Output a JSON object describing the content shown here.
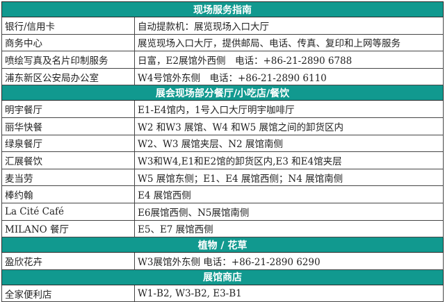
{
  "accent_color": "#11998f",
  "sections": [
    {
      "title": "现场服务指南",
      "rows": [
        [
          "银行/信用卡",
          "自动提款机：展览现场入口大厅"
        ],
        [
          "商务中心",
          "展览现场入口大厅，提供邮局、电话、传真、复印和上网等服务"
        ],
        [
          "喷绘写真及名片印制服务",
          "日富，E2展馆外西侧　电话：+86-21-2890 6788"
        ],
        [
          "浦东新区公安局办公室",
          "W4号馆外东侧　电话：+86-21-2890 6110"
        ]
      ]
    },
    {
      "title": "展会现场部分餐厅/小吃店/餐饮",
      "rows": [
        [
          "明宇餐厅",
          "E1-E4馆内，1号入口大厅明宇咖啡厅"
        ],
        [
          "丽华快餐",
          "W2 和W3 展馆、W4 和W5 展馆之间的卸货区内"
        ],
        [
          "绿泉餐厅",
          "W2、W3 展馆夹层、N2 展馆南侧"
        ],
        [
          "汇展餐饮",
          "W3和W4,E1和E2馆的卸货区内,E3 和E4馆夹层"
        ],
        [
          "麦当劳",
          "W5 展馆东侧；E1、E4 展馆西侧；N4 展馆南侧"
        ],
        [
          "棒约翰",
          "E4 展馆西侧"
        ],
        [
          "La Cité Café",
          "E6展馆西侧、N5展馆南侧"
        ],
        [
          "MILANO 餐厅",
          "E5、E7 展馆西侧"
        ]
      ]
    },
    {
      "title": "植物 / 花草",
      "rows": [
        [
          "盈欣花卉",
          "W3展馆外东侧 电话：+86-21-2890 6290"
        ]
      ]
    },
    {
      "title": "展馆商店",
      "rows": [
        [
          "全家便利店",
          "W1-B2, W3-B2, E3-B1"
        ]
      ]
    }
  ]
}
